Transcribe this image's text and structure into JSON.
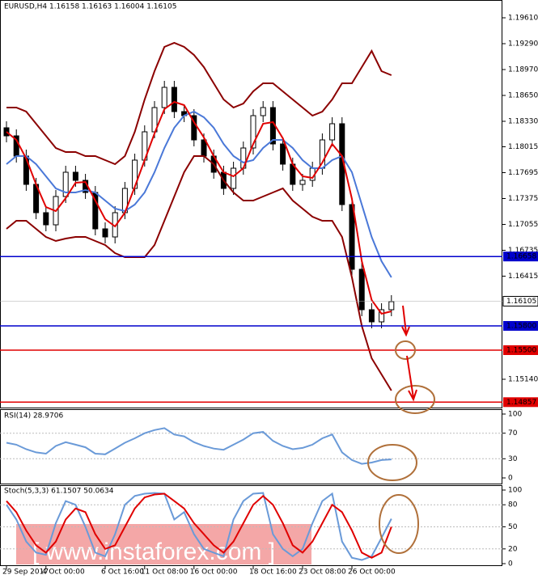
{
  "chart_data": [
    {
      "type": "candlestick",
      "header": "EURUSD,H4  1.16158 1.16163 1.16004 1.16105",
      "categories": [
        "29 Sep 2017",
        null,
        null,
        null,
        "4 Oct 00:00",
        null,
        null,
        null,
        null,
        null,
        "6 Oct 16:00",
        null,
        null,
        null,
        "11 Oct 08:00",
        null,
        null,
        null,
        null,
        "16 Oct 00:00",
        null,
        null,
        null,
        null,
        null,
        "18 Oct 16:00",
        null,
        null,
        null,
        null,
        "23 Oct 08:00",
        null,
        null,
        null,
        null,
        "26 Oct 00:00",
        null,
        null,
        null,
        null
      ],
      "open": [
        1.1825,
        1.1815,
        1.179,
        1.1755,
        1.172,
        1.1705,
        1.174,
        1.177,
        1.176,
        1.1745,
        1.17,
        1.169,
        1.172,
        1.175,
        1.1785,
        1.182,
        1.185,
        1.1875,
        1.1845,
        1.184,
        1.181,
        1.179,
        1.177,
        1.175,
        1.1775,
        1.18,
        1.184,
        1.185,
        1.1805,
        1.178,
        1.1755,
        1.176,
        1.1775,
        1.181,
        1.183,
        1.173,
        1.165,
        1.16,
        1.1585,
        1.16
      ],
      "high": [
        1.1833,
        1.1823,
        1.1798,
        1.1763,
        1.1728,
        1.1748,
        1.1778,
        1.1778,
        1.1768,
        1.1753,
        1.1708,
        1.1728,
        1.1758,
        1.1793,
        1.1828,
        1.1858,
        1.1883,
        1.1883,
        1.1853,
        1.1848,
        1.1818,
        1.1798,
        1.1778,
        1.1783,
        1.1808,
        1.1848,
        1.1858,
        1.1858,
        1.1813,
        1.1788,
        1.1768,
        1.1783,
        1.1818,
        1.1838,
        1.1838,
        1.1738,
        1.1658,
        1.1608,
        1.1608,
        1.1618
      ],
      "low": [
        1.1807,
        1.1782,
        1.1747,
        1.1712,
        1.1697,
        1.1697,
        1.1732,
        1.1752,
        1.1737,
        1.1692,
        1.1682,
        1.1682,
        1.1712,
        1.1742,
        1.1777,
        1.1812,
        1.1842,
        1.1837,
        1.1832,
        1.1802,
        1.1782,
        1.1762,
        1.1742,
        1.1742,
        1.1767,
        1.1792,
        1.1832,
        1.1797,
        1.1772,
        1.1747,
        1.1747,
        1.1752,
        1.1767,
        1.1802,
        1.1722,
        1.1642,
        1.1592,
        1.1577,
        1.1577,
        1.1592
      ],
      "close": [
        1.1815,
        1.179,
        1.1755,
        1.172,
        1.1705,
        1.174,
        1.177,
        1.176,
        1.1745,
        1.17,
        1.169,
        1.172,
        1.175,
        1.1785,
        1.182,
        1.185,
        1.1875,
        1.1845,
        1.184,
        1.181,
        1.179,
        1.177,
        1.175,
        1.1775,
        1.18,
        1.184,
        1.185,
        1.1805,
        1.178,
        1.1755,
        1.176,
        1.1775,
        1.181,
        1.183,
        1.173,
        1.165,
        1.16,
        1.1585,
        1.16,
        1.161
      ],
      "candle_color": "#000000",
      "series": [
        {
          "color": "#8b0000",
          "values": [
            1.185,
            1.185,
            1.1845,
            1.183,
            1.1815,
            1.18,
            1.1795,
            1.1795,
            1.179,
            1.179,
            1.1785,
            1.178,
            1.179,
            1.182,
            1.186,
            1.1895,
            1.1925,
            1.193,
            1.1925,
            1.1915,
            1.19,
            1.188,
            1.186,
            1.185,
            1.1855,
            1.187,
            1.188,
            1.188,
            1.187,
            1.186,
            1.185,
            1.184,
            1.1845,
            1.186,
            1.188,
            1.188,
            1.19,
            1.192,
            1.1895,
            1.189
          ]
        },
        {
          "color": "#8b0000",
          "values": [
            1.17,
            1.171,
            1.171,
            1.17,
            1.169,
            1.1685,
            1.1688,
            1.169,
            1.169,
            1.1685,
            1.168,
            1.167,
            1.1665,
            1.1665,
            1.1665,
            1.168,
            1.171,
            1.174,
            1.177,
            1.179,
            1.179,
            1.178,
            1.176,
            1.1745,
            1.1735,
            1.1735,
            1.174,
            1.1745,
            1.175,
            1.1735,
            1.1725,
            1.1715,
            1.171,
            1.171,
            1.169,
            1.164,
            1.158,
            1.154,
            1.152,
            1.15
          ]
        },
        {
          "color": "#4a78d8",
          "values": [
            1.178,
            1.179,
            1.179,
            1.178,
            1.1765,
            1.175,
            1.1745,
            1.1745,
            1.1748,
            1.1745,
            1.1735,
            1.1725,
            1.1722,
            1.173,
            1.1745,
            1.177,
            1.18,
            1.1825,
            1.184,
            1.1845,
            1.1838,
            1.1825,
            1.1805,
            1.179,
            1.1782,
            1.1785,
            1.18,
            1.181,
            1.181,
            1.18,
            1.1785,
            1.1775,
            1.1775,
            1.1785,
            1.179,
            1.177,
            1.173,
            1.169,
            1.166,
            1.164
          ]
        },
        {
          "color": "#e00000",
          "values": [
            1.182,
            1.181,
            1.1787,
            1.1755,
            1.1727,
            1.1722,
            1.1738,
            1.1757,
            1.1758,
            1.1735,
            1.1712,
            1.1703,
            1.172,
            1.1752,
            1.1785,
            1.1818,
            1.1848,
            1.1857,
            1.1853,
            1.1832,
            1.1813,
            1.179,
            1.177,
            1.1765,
            1.1775,
            1.1805,
            1.183,
            1.1832,
            1.1812,
            1.178,
            1.1765,
            1.1763,
            1.1782,
            1.1805,
            1.179,
            1.1737,
            1.166,
            1.1612,
            1.1595,
            1.1598
          ]
        }
      ],
      "ylim": [
        1.1478,
        1.1983
      ],
      "yticks": [
        {
          "value": 1.1961,
          "label": "1.19610"
        },
        {
          "value": 1.1929,
          "label": "1.19290"
        },
        {
          "value": 1.1897,
          "label": "1.18970"
        },
        {
          "value": 1.1865,
          "label": "1.18650"
        },
        {
          "value": 1.1833,
          "label": "1.18330"
        },
        {
          "value": 1.18015,
          "label": "1.18015"
        },
        {
          "value": 1.17695,
          "label": "1.17695"
        },
        {
          "value": 1.17375,
          "label": "1.17375"
        },
        {
          "value": 1.17055,
          "label": "1.17055"
        },
        {
          "value": 1.16735,
          "label": "1.16735"
        },
        {
          "value": 1.16415,
          "label": "1.16415"
        },
        {
          "value": 1.1514,
          "label": "1.15140"
        }
      ],
      "levels": [
        {
          "value": 1.16658,
          "label": "1.16658",
          "color": "#0000cc"
        },
        {
          "value": 1.158,
          "label": "1.15800",
          "color": "#0000cc"
        },
        {
          "value": 1.155,
          "label": "1.15500",
          "color": "#e00000"
        },
        {
          "value": 1.14857,
          "label": "1.14857",
          "color": "#e00000"
        }
      ],
      "current": {
        "value": 1.16105,
        "label": "1.16105"
      }
    },
    {
      "type": "line",
      "header": "RSI(14) 28.9706",
      "series": [
        {
          "color": "#6a9ad8",
          "values": [
            55,
            52,
            45,
            40,
            38,
            50,
            56,
            52,
            48,
            38,
            37,
            46,
            55,
            62,
            70,
            75,
            78,
            68,
            65,
            56,
            50,
            46,
            44,
            52,
            60,
            70,
            72,
            58,
            50,
            45,
            47,
            52,
            62,
            68,
            40,
            28,
            22,
            24,
            28,
            29
          ]
        }
      ],
      "ylim": [
        0,
        100
      ],
      "yticks": [
        100,
        70,
        30,
        0
      ]
    },
    {
      "type": "line",
      "header": "Stoch(5,3,3) 61.1507 50.0634",
      "series": [
        {
          "color": "#6a9ad8",
          "values": [
            80,
            60,
            30,
            15,
            12,
            55,
            85,
            80,
            50,
            15,
            10,
            40,
            80,
            92,
            95,
            96,
            95,
            60,
            70,
            40,
            20,
            15,
            10,
            60,
            85,
            95,
            96,
            40,
            20,
            10,
            20,
            55,
            85,
            95,
            30,
            8,
            5,
            10,
            35,
            61
          ]
        },
        {
          "color": "#e00000",
          "values": [
            85,
            70,
            45,
            25,
            15,
            30,
            60,
            75,
            70,
            40,
            20,
            25,
            50,
            75,
            90,
            94,
            95,
            85,
            75,
            55,
            40,
            25,
            15,
            30,
            55,
            80,
            92,
            80,
            55,
            25,
            15,
            30,
            55,
            80,
            70,
            45,
            15,
            8,
            15,
            50
          ]
        }
      ],
      "ylim": [
        0,
        100
      ],
      "yticks": [
        100,
        80,
        50,
        20,
        0
      ]
    }
  ],
  "watermark": "[ www.instaforex.com ]"
}
